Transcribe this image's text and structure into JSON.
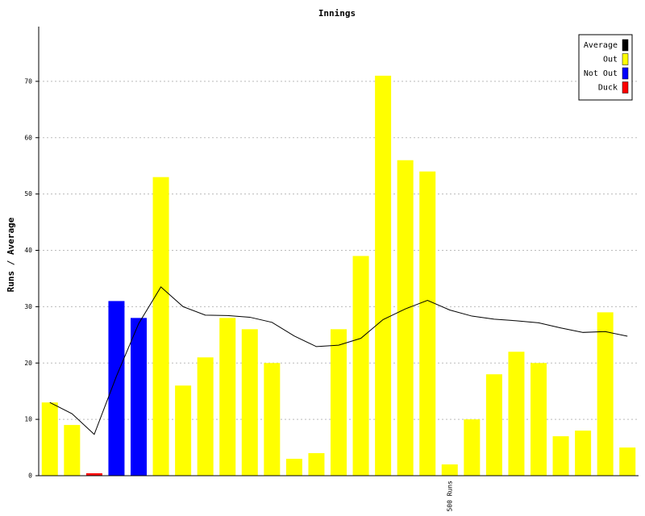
{
  "chart_data": {
    "type": "bar",
    "title": "Innings",
    "y_label": "Runs / Average",
    "categories": [
      null,
      null,
      null,
      null,
      null,
      null,
      null,
      null,
      null,
      null,
      null,
      null,
      null,
      null,
      null,
      null,
      null,
      null,
      "500 Runs",
      null,
      null,
      null,
      null,
      null,
      null,
      null,
      null
    ],
    "series": [
      {
        "name": "Average",
        "type": "line",
        "color": "#000000",
        "values": [
          13,
          11,
          7.33,
          17.67,
          27,
          33.5,
          30,
          28.5,
          28.43,
          28.13,
          27.22,
          24.8,
          22.91,
          23.17,
          24.38,
          27.71,
          29.6,
          31.13,
          29.41,
          28.33,
          27.79,
          27.5,
          27.14,
          26.23,
          25.43,
          25.58,
          24.76
        ]
      },
      {
        "name": "Out",
        "type": "bar",
        "color": "#ffff00",
        "values": [
          13,
          9,
          null,
          null,
          null,
          53,
          16,
          21,
          28,
          26,
          20,
          3,
          4,
          26,
          39,
          71,
          56,
          54,
          2,
          10,
          18,
          22,
          20,
          7,
          8,
          29,
          5
        ]
      },
      {
        "name": "Not Out",
        "type": "bar",
        "color": "#0000ff",
        "values": [
          null,
          null,
          null,
          31,
          28,
          null,
          null,
          null,
          null,
          null,
          null,
          null,
          null,
          null,
          null,
          null,
          null,
          null,
          null,
          null,
          null,
          null,
          null,
          null,
          null,
          null,
          null
        ]
      },
      {
        "name": "Duck",
        "type": "bar",
        "color": "#ff0000",
        "values": [
          null,
          null,
          0,
          null,
          null,
          null,
          null,
          null,
          null,
          null,
          null,
          null,
          null,
          null,
          null,
          null,
          null,
          null,
          null,
          null,
          null,
          null,
          null,
          null,
          null,
          null,
          null
        ]
      }
    ],
    "ylim": [
      0,
      79
    ],
    "yticks": [
      0,
      10,
      20,
      30,
      40,
      50,
      60,
      70
    ],
    "grid": true,
    "legend": "top-right"
  }
}
